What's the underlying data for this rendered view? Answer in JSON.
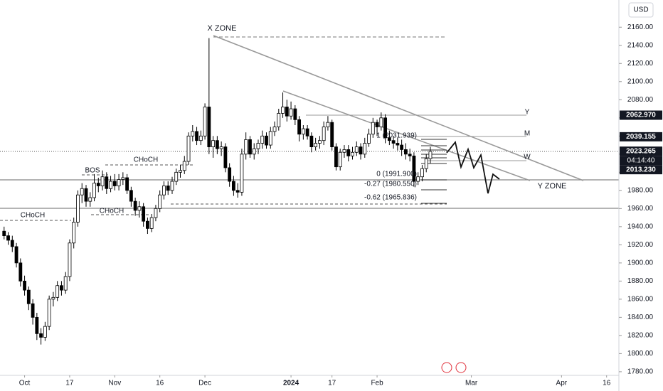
{
  "chart_data": {
    "type": "candlestick",
    "currency": "USD",
    "up_color": "#ffffff",
    "down_color": "#000000",
    "outline_color": "#000000",
    "ohlc": [
      [
        1935,
        1940,
        1926,
        1930
      ],
      [
        1930,
        1934,
        1920,
        1925
      ],
      [
        1925,
        1930,
        1912,
        1918
      ],
      [
        1918,
        1922,
        1895,
        1900
      ],
      [
        1900,
        1905,
        1874,
        1880
      ],
      [
        1880,
        1886,
        1864,
        1870
      ],
      [
        1870,
        1874,
        1848,
        1855
      ],
      [
        1855,
        1860,
        1832,
        1840
      ],
      [
        1840,
        1845,
        1815,
        1822
      ],
      [
        1822,
        1828,
        1810,
        1818
      ],
      [
        1818,
        1835,
        1814,
        1830
      ],
      [
        1830,
        1864,
        1826,
        1860
      ],
      [
        1860,
        1868,
        1852,
        1862
      ],
      [
        1862,
        1880,
        1858,
        1875
      ],
      [
        1875,
        1880,
        1864,
        1870
      ],
      [
        1870,
        1890,
        1866,
        1885
      ],
      [
        1885,
        1926,
        1880,
        1922
      ],
      [
        1922,
        1950,
        1916,
        1945
      ],
      [
        1945,
        1980,
        1940,
        1975
      ],
      [
        1975,
        1988,
        1966,
        1982
      ],
      [
        1982,
        1986,
        1962,
        1968
      ],
      [
        1968,
        1978,
        1962,
        1972
      ],
      [
        1972,
        1998,
        1968,
        1988
      ],
      [
        1988,
        1994,
        1978,
        1985
      ],
      [
        1985,
        2002,
        1980,
        1995
      ],
      [
        1995,
        2000,
        1976,
        1982
      ],
      [
        1982,
        1996,
        1978,
        1990
      ],
      [
        1990,
        1998,
        1980,
        1985
      ],
      [
        1985,
        1998,
        1980,
        1992
      ],
      [
        1992,
        2000,
        1986,
        1994
      ],
      [
        1994,
        1998,
        1976,
        1980
      ],
      [
        1980,
        1984,
        1962,
        1968
      ],
      [
        1968,
        1972,
        1952,
        1958
      ],
      [
        1958,
        1968,
        1950,
        1962
      ],
      [
        1962,
        1966,
        1940,
        1946
      ],
      [
        1946,
        1950,
        1932,
        1938
      ],
      [
        1938,
        1954,
        1934,
        1950
      ],
      [
        1950,
        1964,
        1946,
        1960
      ],
      [
        1960,
        1980,
        1956,
        1975
      ],
      [
        1975,
        1990,
        1970,
        1985
      ],
      [
        1985,
        1990,
        1975,
        1980
      ],
      [
        1980,
        1995,
        1976,
        1990
      ],
      [
        1990,
        2004,
        1986,
        2000
      ],
      [
        2000,
        2008,
        1994,
        2002
      ],
      [
        2002,
        2018,
        1998,
        2012
      ],
      [
        2012,
        2044,
        2008,
        2040
      ],
      [
        2040,
        2052,
        2034,
        2045
      ],
      [
        2045,
        2050,
        2030,
        2035
      ],
      [
        2035,
        2046,
        2030,
        2040
      ],
      [
        2040,
        2076,
        2036,
        2072
      ],
      [
        2072,
        2148,
        2020,
        2028
      ],
      [
        2028,
        2040,
        2016,
        2035
      ],
      [
        2035,
        2040,
        2020,
        2026
      ],
      [
        2026,
        2034,
        2018,
        2028
      ],
      [
        2028,
        2032,
        2000,
        2005
      ],
      [
        2005,
        2010,
        1984,
        1990
      ],
      [
        1990,
        1996,
        1974,
        1980
      ],
      [
        1980,
        1988,
        1972,
        1978
      ],
      [
        1978,
        2026,
        1974,
        2020
      ],
      [
        2020,
        2044,
        2014,
        2036
      ],
      [
        2036,
        2040,
        2016,
        2020
      ],
      [
        2020,
        2032,
        2014,
        2026
      ],
      [
        2026,
        2036,
        2020,
        2032
      ],
      [
        2032,
        2046,
        2026,
        2040
      ],
      [
        2040,
        2044,
        2026,
        2030
      ],
      [
        2030,
        2050,
        2026,
        2045
      ],
      [
        2045,
        2056,
        2040,
        2050
      ],
      [
        2050,
        2070,
        2046,
        2065
      ],
      [
        2065,
        2088,
        2060,
        2072
      ],
      [
        2072,
        2080,
        2056,
        2062
      ],
      [
        2062,
        2078,
        2058,
        2070
      ],
      [
        2070,
        2074,
        2052,
        2058
      ],
      [
        2058,
        2062,
        2034,
        2042
      ],
      [
        2042,
        2052,
        2036,
        2048
      ],
      [
        2048,
        2052,
        2036,
        2040
      ],
      [
        2040,
        2044,
        2022,
        2028
      ],
      [
        2028,
        2038,
        2024,
        2032
      ],
      [
        2032,
        2040,
        2026,
        2035
      ],
      [
        2035,
        2056,
        2030,
        2050
      ],
      [
        2050,
        2062,
        2046,
        2055
      ],
      [
        2055,
        2058,
        2024,
        2028
      ],
      [
        2028,
        2032,
        2002,
        2006
      ],
      [
        2006,
        2026,
        2002,
        2022
      ],
      [
        2022,
        2030,
        2016,
        2025
      ],
      [
        2025,
        2030,
        2012,
        2018
      ],
      [
        2018,
        2028,
        2014,
        2022
      ],
      [
        2022,
        2034,
        2018,
        2028
      ],
      [
        2028,
        2032,
        2014,
        2020
      ],
      [
        2020,
        2038,
        2016,
        2032
      ],
      [
        2032,
        2048,
        2028,
        2042
      ],
      [
        2042,
        2060,
        2038,
        2055
      ],
      [
        2055,
        2058,
        2040,
        2050
      ],
      [
        2050,
        2066,
        2046,
        2060
      ],
      [
        2060,
        2064,
        2032,
        2038
      ],
      [
        2038,
        2046,
        2030,
        2035
      ],
      [
        2035,
        2040,
        2026,
        2032
      ],
      [
        2032,
        2038,
        2024,
        2030
      ],
      [
        2030,
        2036,
        2018,
        2025
      ],
      [
        2025,
        2032,
        2014,
        2020
      ],
      [
        2020,
        2026,
        2012,
        2018
      ],
      [
        2018,
        2022,
        1984,
        1990
      ],
      [
        1990,
        2000,
        1986,
        1995
      ],
      [
        1995,
        2008,
        1990,
        2004
      ],
      [
        2004,
        2020,
        2000,
        2015
      ],
      [
        2015,
        2028,
        2010,
        2023
      ]
    ],
    "xlim": [
      -1,
      150
    ],
    "xticks": [
      {
        "value": 5,
        "label": "Oct"
      },
      {
        "value": 16,
        "label": "17"
      },
      {
        "value": 27,
        "label": "Nov"
      },
      {
        "value": 38,
        "label": "16"
      },
      {
        "value": 49,
        "label": "Dec"
      },
      {
        "value": 70,
        "label": "2024"
      },
      {
        "value": 80,
        "label": "17"
      },
      {
        "value": 91,
        "label": "Feb"
      },
      {
        "value": 114,
        "label": "Mar"
      },
      {
        "value": 136,
        "label": "Apr"
      },
      {
        "value": 147,
        "label": "16"
      }
    ],
    "ylim": [
      1776,
      2190
    ],
    "yticks": [
      {
        "value": 1780,
        "label": "1780.00"
      },
      {
        "value": 1800,
        "label": "1800.00"
      },
      {
        "value": 1820,
        "label": "1820.00"
      },
      {
        "value": 1840,
        "label": "1840.00"
      },
      {
        "value": 1860,
        "label": "1860.00"
      },
      {
        "value": 1880,
        "label": "1880.00"
      },
      {
        "value": 1900,
        "label": "1900.00"
      },
      {
        "value": 1920,
        "label": "1920.00"
      },
      {
        "value": 1940,
        "label": "1940.00"
      },
      {
        "value": 1960,
        "label": "1960.00"
      },
      {
        "value": 1980,
        "label": "1980.00"
      },
      {
        "value": 2000,
        "label": "2000.00"
      },
      {
        "value": 2020,
        "label": "2020.00"
      },
      {
        "value": 2040,
        "label": "2040.00"
      },
      {
        "value": 2060,
        "label": "2060.00"
      },
      {
        "value": 2080,
        "label": "2080.00"
      },
      {
        "value": 2100,
        "label": "2100.00"
      },
      {
        "value": 2120,
        "label": "2120.00"
      },
      {
        "value": 2140,
        "label": "2140.00"
      },
      {
        "value": 2160,
        "label": "2160.00"
      }
    ],
    "price_labels": [
      {
        "value": 2062.97,
        "label": "2062.970"
      },
      {
        "value": 2039.155,
        "label": "2039.155"
      },
      {
        "value": 2023.265,
        "label": "2023.265"
      },
      {
        "value": 2013.23,
        "label": "2013.230"
      }
    ],
    "countdown": "04:14:40",
    "annotations": [
      "X ZONE",
      "Y ZONE",
      "BOS",
      "CHoCH",
      "CHoCH",
      "CHoCH",
      "Y",
      "M",
      "W"
    ],
    "fib_labels": [
      "1 (2031.939)",
      "0 (1991.900)",
      "-0.27 (1980.550)",
      "-0.62 (1965.836)"
    ]
  }
}
